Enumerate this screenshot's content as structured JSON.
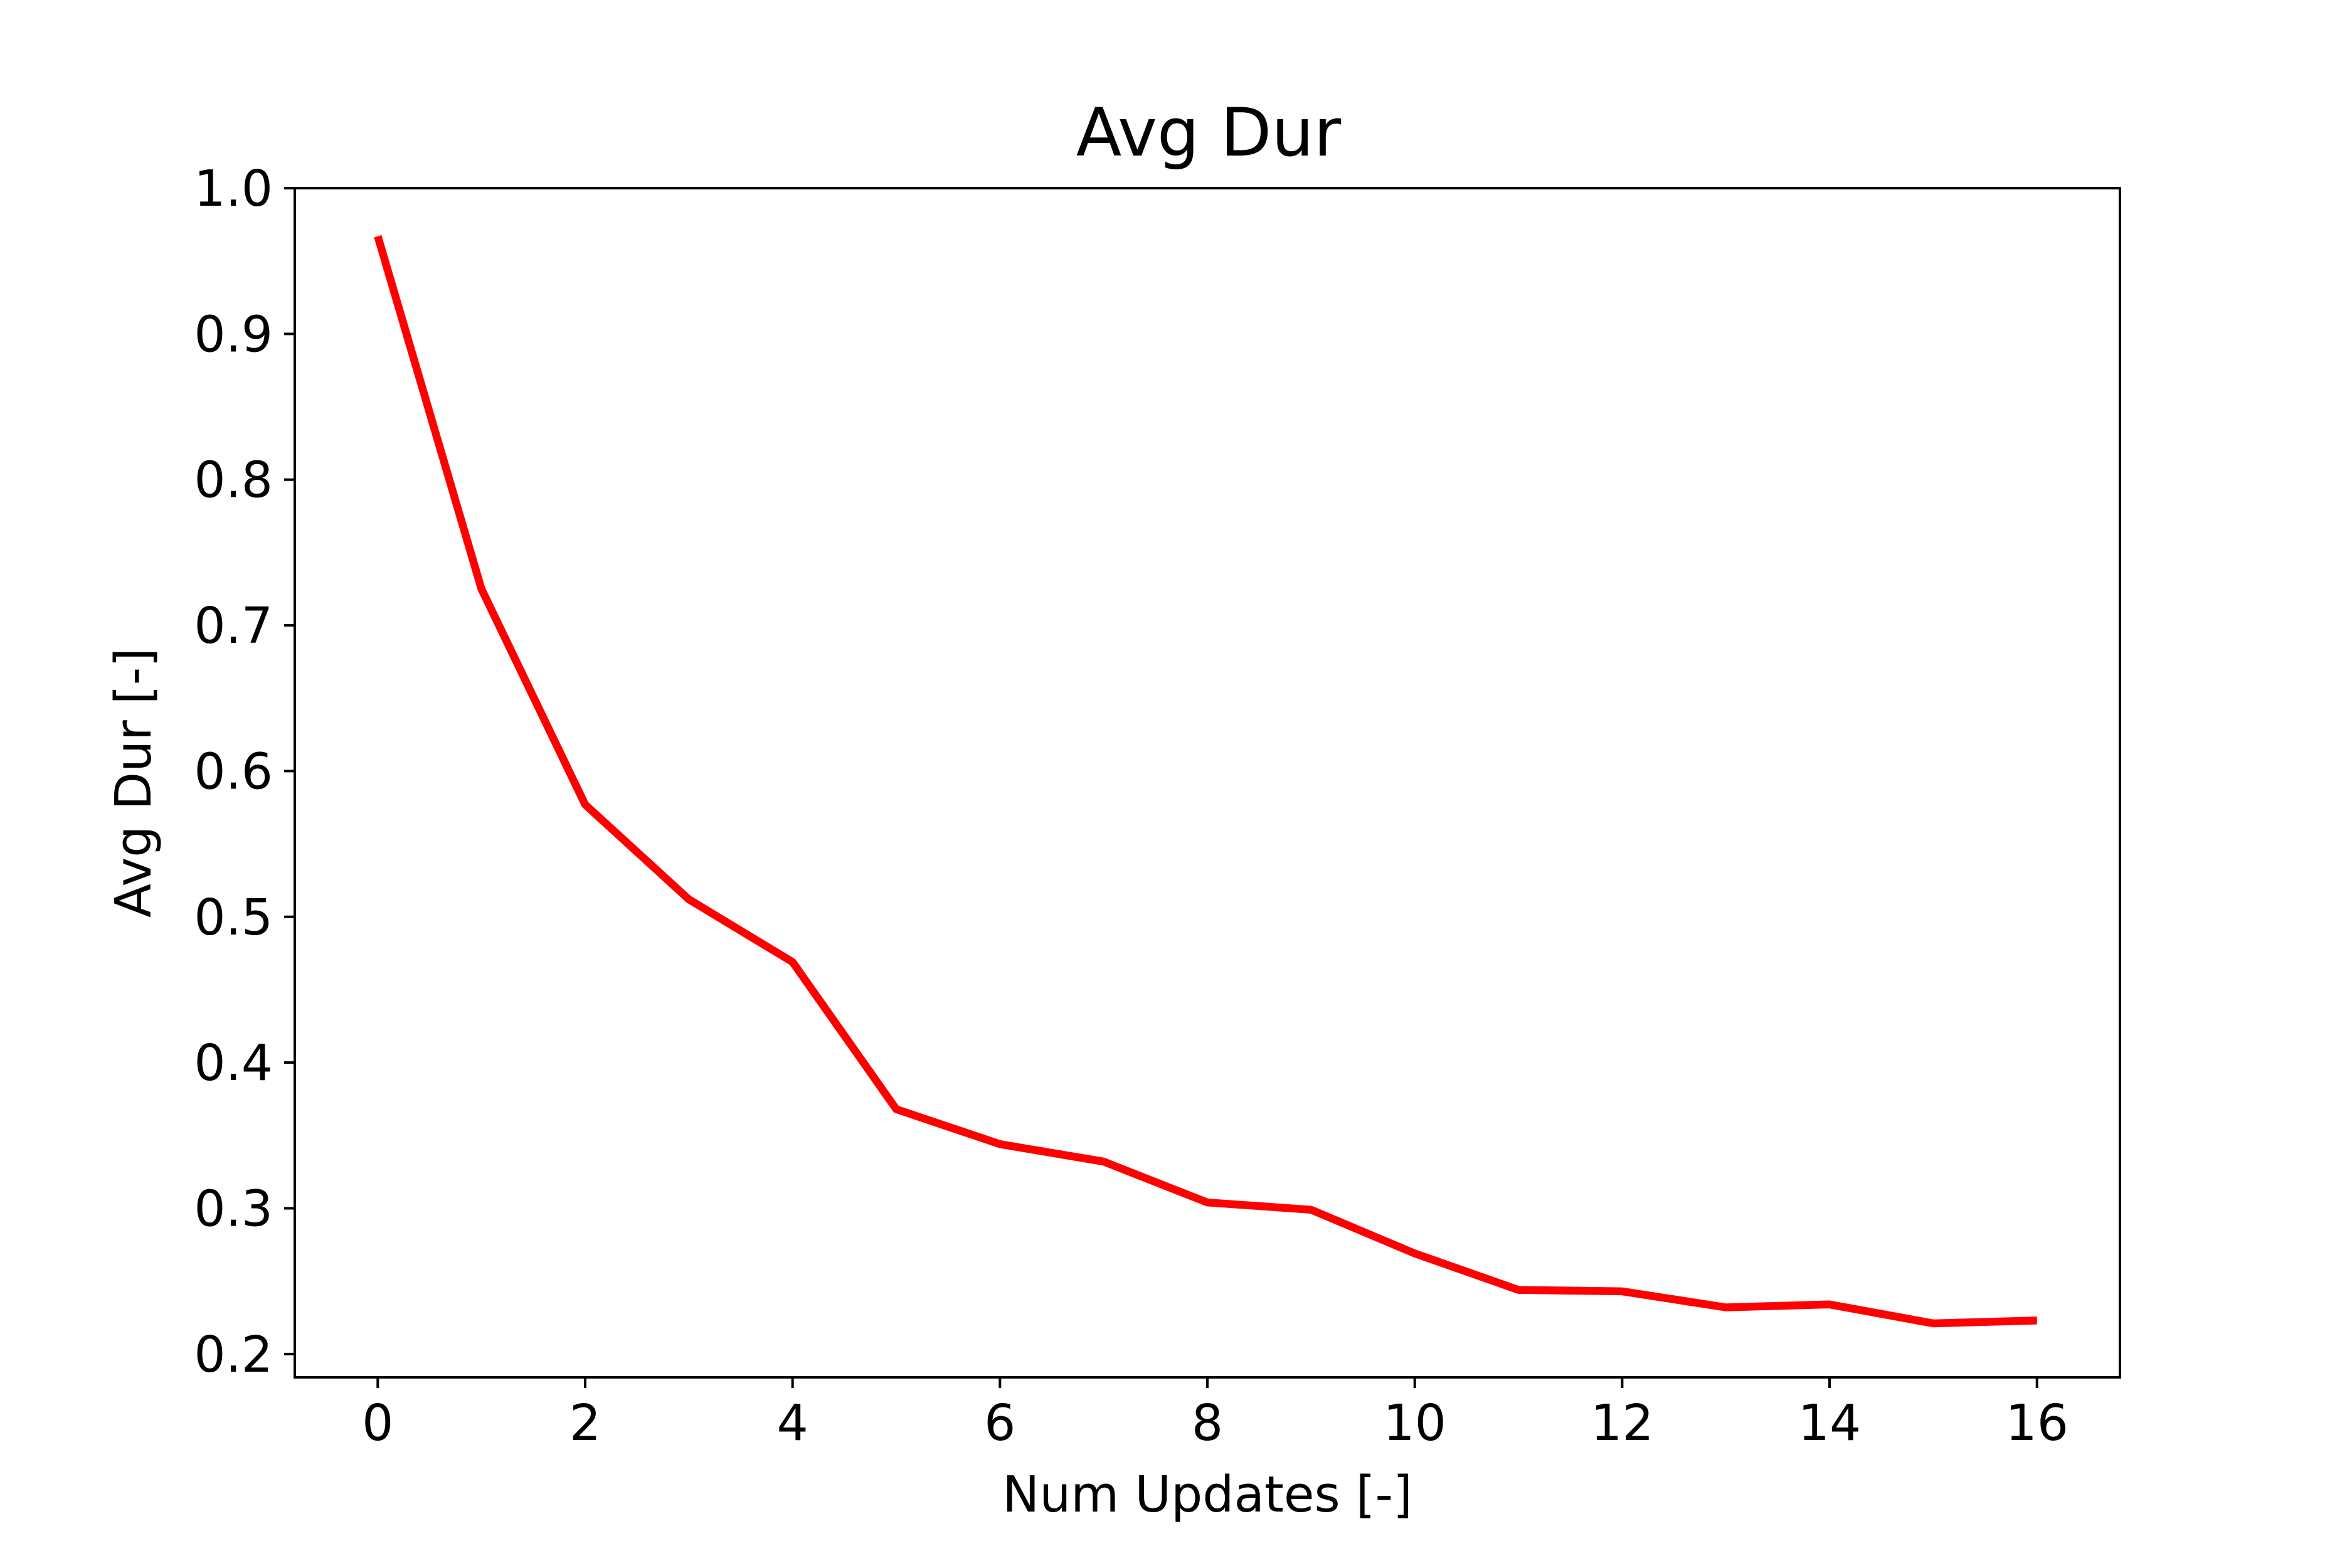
{
  "chart_data": {
    "type": "line",
    "title": "Avg Dur",
    "xlabel": "Num Updates [-]",
    "ylabel": "Avg Dur [-]",
    "xlim": [
      -0.8,
      16.8
    ],
    "ylim": [
      0.184,
      1.0
    ],
    "xticks": [
      0,
      2,
      4,
      6,
      8,
      10,
      12,
      14,
      16
    ],
    "xtick_labels": [
      "0",
      "2",
      "4",
      "6",
      "8",
      "10",
      "12",
      "14",
      "16"
    ],
    "yticks": [
      0.2,
      0.3,
      0.4,
      0.5,
      0.6,
      0.7,
      0.8,
      0.9,
      1.0
    ],
    "ytick_labels": [
      "0.2",
      "0.3",
      "0.4",
      "0.5",
      "0.6",
      "0.7",
      "0.8",
      "0.9",
      "1.0"
    ],
    "grid": false,
    "legend": "none",
    "series": [
      {
        "color": "#ff0000",
        "x": [
          0,
          1,
          2,
          3,
          4,
          5,
          6,
          7,
          8,
          9,
          10,
          11,
          12,
          13,
          14,
          15,
          16
        ],
        "y": [
          0.967,
          0.725,
          0.577,
          0.512,
          0.469,
          0.368,
          0.344,
          0.332,
          0.304,
          0.299,
          0.269,
          0.244,
          0.243,
          0.232,
          0.234,
          0.221,
          0.223
        ]
      }
    ]
  }
}
